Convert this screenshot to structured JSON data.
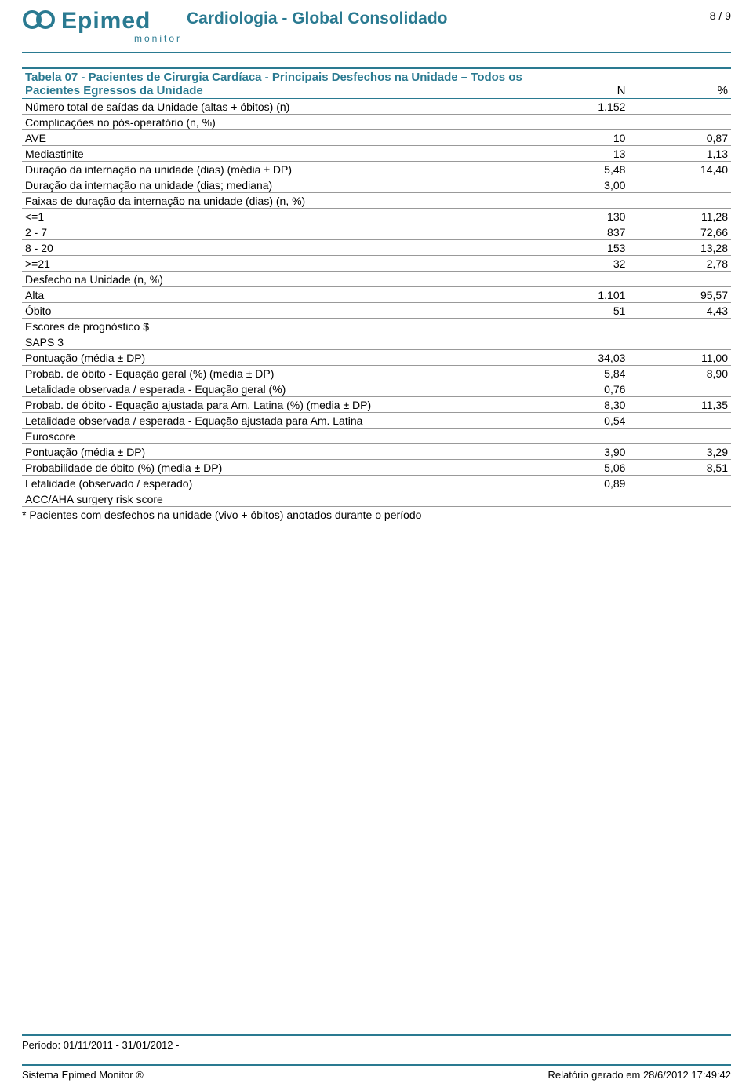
{
  "header": {
    "logo_name": "Epimed",
    "logo_subtitle": "monitor",
    "title": "Cardiologia - Global Consolidado",
    "page_number": "8 / 9"
  },
  "table": {
    "title": "Tabela 07 - Pacientes de Cirurgia Cardíaca - Principais Desfechos na Unidade – Todos os Pacientes Egressos da Unidade",
    "col_n": "N",
    "col_pct": "%",
    "rows": [
      {
        "label": "Número total de saídas da Unidade (altas + óbitos) (n)",
        "n": "1.152",
        "pct": "",
        "indent": 0
      },
      {
        "label": "Complicações no pós-operatório (n, %)",
        "n": "",
        "pct": "",
        "indent": 0
      },
      {
        "label": "AVE",
        "n": "10",
        "pct": "0,87",
        "indent": 1
      },
      {
        "label": "Mediastinite",
        "n": "13",
        "pct": "1,13",
        "indent": 1
      },
      {
        "label": "Duração da internação na unidade (dias) (média ± DP)",
        "n": "5,48",
        "pct": "14,40",
        "indent": 0
      },
      {
        "label": "Duração da internação na unidade (dias; mediana)",
        "n": "3,00",
        "pct": "",
        "indent": 0
      },
      {
        "label": "Faixas de duração da internação na unidade (dias) (n, %)",
        "n": "",
        "pct": "",
        "indent": 0
      },
      {
        "label": "<=1",
        "n": "130",
        "pct": "11,28",
        "indent": 1
      },
      {
        "label": "2 - 7",
        "n": "837",
        "pct": "72,66",
        "indent": 1
      },
      {
        "label": "8 - 20",
        "n": "153",
        "pct": "13,28",
        "indent": 1
      },
      {
        "label": ">=21",
        "n": "32",
        "pct": "2,78",
        "indent": 1
      },
      {
        "label": "Desfecho na Unidade (n, %)",
        "n": "",
        "pct": "",
        "indent": 0
      },
      {
        "label": "Alta",
        "n": "1.101",
        "pct": "95,57",
        "indent": 1
      },
      {
        "label": "Óbito",
        "n": "51",
        "pct": "4,43",
        "indent": 1
      },
      {
        "label": "Escores de prognóstico $",
        "n": "",
        "pct": "",
        "indent": 0
      },
      {
        "label": "SAPS 3",
        "n": "",
        "pct": "",
        "indent": 0
      },
      {
        "label": "Pontuação (média ± DP)",
        "n": "34,03",
        "pct": "11,00",
        "indent": 1
      },
      {
        "label": "Probab. de óbito - Equação geral (%) (media ± DP)",
        "n": "5,84",
        "pct": "8,90",
        "indent": 1
      },
      {
        "label": "Letalidade observada / esperada - Equação geral (%)",
        "n": "0,76",
        "pct": "",
        "indent": 1
      },
      {
        "label": "Probab. de óbito - Equação ajustada para Am. Latina (%) (media ± DP)",
        "n": "8,30",
        "pct": "11,35",
        "indent": 1
      },
      {
        "label": "Letalidade observada / esperada - Equação ajustada para Am. Latina",
        "n": "0,54",
        "pct": "",
        "indent": 1
      },
      {
        "label": "Euroscore",
        "n": "",
        "pct": "",
        "indent": 0
      },
      {
        "label": "Pontuação (média ± DP)",
        "n": "3,90",
        "pct": "3,29",
        "indent": 1
      },
      {
        "label": "Probabilidade de óbito (%) (media ± DP)",
        "n": "5,06",
        "pct": "8,51",
        "indent": 1
      },
      {
        "label": "Letalidade (observado / esperado)",
        "n": "0,89",
        "pct": "",
        "indent": 1
      },
      {
        "label": "ACC/AHA surgery risk score",
        "n": "",
        "pct": "",
        "indent": 0
      }
    ],
    "footnote": "* Pacientes com desfechos na unidade (vivo + óbitos) anotados durante o período"
  },
  "footer": {
    "period": "Período: 01/11/2011 - 31/01/2012 -",
    "system": "Sistema Epimed Monitor ®",
    "generated": "Relatório gerado em 28/6/2012 17:49:42"
  },
  "colors": {
    "brand": "#2a7a91",
    "rule_light": "#999999"
  }
}
